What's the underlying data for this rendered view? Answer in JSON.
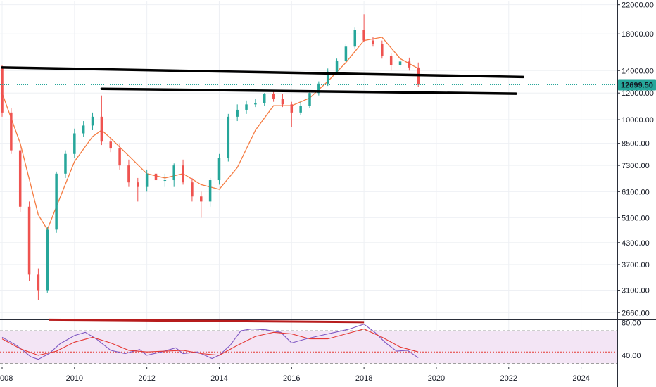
{
  "chart_data": [
    {
      "type": "candlestick",
      "title": "",
      "y_scale": "log",
      "ylim": [
        2550,
        22500
      ],
      "xlim": [
        2008.0,
        2025.0
      ],
      "grid": true,
      "x_ticks": [
        "008",
        "2010",
        "2012",
        "2014",
        "2016",
        "2018",
        "2020",
        "2022",
        "2024"
      ],
      "x_tick_values": [
        2008.0,
        2010.0,
        2012.0,
        2014.0,
        2016.0,
        2018.0,
        2020.0,
        2022.0,
        2024.0
      ],
      "y_ticks": [
        "22000.00",
        "18000.00",
        "14000.00",
        "12000.00",
        "10000.00",
        "8500.00",
        "7300.00",
        "6100.00",
        "5100.00",
        "4300.00",
        "3700.00",
        "3100.00",
        "2660.00"
      ],
      "y_tick_values": [
        22000,
        18000,
        14000,
        12000,
        10000,
        8500,
        7300,
        6100,
        5100,
        4300,
        3700,
        3100,
        2660
      ],
      "last_price": {
        "value": 12699.5,
        "label": "12699.50"
      },
      "colors": {
        "up": "#26a69a",
        "down": "#ef5350",
        "ma": "#f57c42",
        "trendline": "#000000",
        "last_price_line": "#26a69a",
        "last_price_badge": "#26a69a"
      },
      "trendlines": [
        {
          "x": [
            2008.0,
            2022.4
          ],
          "y": [
            14300,
            13400
          ]
        },
        {
          "x": [
            2010.75,
            2022.2
          ],
          "y": [
            12350,
            11950
          ]
        }
      ],
      "series": [
        {
          "type": "candlestick",
          "x": [
            2008.0,
            2008.25,
            2008.5,
            2008.75,
            2009.0,
            2009.25,
            2009.5,
            2009.75,
            2010.0,
            2010.25,
            2010.5,
            2010.75,
            2011.0,
            2011.25,
            2011.5,
            2011.75,
            2012.0,
            2012.25,
            2012.5,
            2012.75,
            2013.0,
            2013.25,
            2013.5,
            2013.75,
            2014.0,
            2014.25,
            2014.5,
            2014.75,
            2015.0,
            2015.25,
            2015.5,
            2015.75,
            2016.0,
            2016.25,
            2016.5,
            2016.75,
            2017.0,
            2017.25,
            2017.5,
            2017.75,
            2018.0,
            2018.25,
            2018.5,
            2018.75,
            2019.0,
            2019.25,
            2019.5
          ],
          "open": [
            14300,
            10500,
            8100,
            5500,
            3450,
            3100,
            4700,
            6900,
            7900,
            9100,
            9600,
            10200,
            8600,
            8200,
            7300,
            6500,
            6300,
            6900,
            6600,
            6600,
            7300,
            6500,
            5900,
            5700,
            6600,
            7700,
            10200,
            10700,
            11100,
            11200,
            11900,
            11500,
            11100,
            10500,
            11000,
            12000,
            12800,
            13900,
            15000,
            16500,
            18500,
            17200,
            16800,
            15500,
            14500,
            14900,
            14300
          ],
          "high": [
            14500,
            10800,
            8300,
            5700,
            3600,
            4800,
            7000,
            8100,
            9400,
            9900,
            10500,
            11800,
            8800,
            8500,
            7600,
            6700,
            7100,
            7100,
            6900,
            7400,
            7600,
            6700,
            6100,
            6700,
            7900,
            10400,
            11100,
            11400,
            11500,
            12000,
            12100,
            11900,
            11300,
            11300,
            12200,
            13000,
            14200,
            15200,
            16800,
            18800,
            20600,
            17600,
            17200,
            15800,
            15200,
            15300,
            14800
          ],
          "low": [
            10200,
            7900,
            5300,
            3300,
            2900,
            3050,
            4600,
            6700,
            7700,
            8900,
            9300,
            8400,
            8000,
            7100,
            6300,
            5700,
            6100,
            6300,
            6300,
            6300,
            6400,
            5700,
            5100,
            5500,
            6400,
            7500,
            9900,
            10400,
            10900,
            11000,
            11300,
            10900,
            9500,
            10300,
            10800,
            11800,
            12600,
            13700,
            14800,
            16300,
            17000,
            16500,
            15200,
            14000,
            14200,
            14000,
            12500
          ],
          "close": [
            10500,
            8100,
            5500,
            3450,
            3100,
            4700,
            6900,
            7900,
            9100,
            9600,
            10200,
            8600,
            8200,
            7300,
            6500,
            6300,
            6900,
            6600,
            6600,
            7300,
            6500,
            5900,
            5700,
            6600,
            7700,
            10200,
            10700,
            11100,
            11200,
            11900,
            11500,
            11100,
            10500,
            11000,
            12000,
            12800,
            13900,
            15000,
            16500,
            18500,
            17200,
            16800,
            15500,
            14500,
            14900,
            14300,
            12700
          ]
        },
        {
          "name": "",
          "type": "line",
          "x": [
            2008.0,
            2008.5,
            2009.0,
            2009.25,
            2009.5,
            2010.0,
            2010.5,
            2010.75,
            2011.0,
            2011.5,
            2012.0,
            2012.5,
            2013.0,
            2013.5,
            2014.0,
            2014.5,
            2015.0,
            2015.5,
            2016.0,
            2016.5,
            2017.0,
            2017.5,
            2018.0,
            2018.5,
            2019.0,
            2019.5
          ],
          "y": [
            12000,
            8500,
            5200,
            4700,
            5500,
            7500,
            8900,
            9300,
            8800,
            7800,
            6900,
            6700,
            6900,
            6400,
            6200,
            7200,
            9300,
            11000,
            11000,
            11600,
            13000,
            14800,
            17200,
            17600,
            15200,
            14200
          ]
        }
      ]
    },
    {
      "type": "line",
      "title": "",
      "xlim": [
        2008.0,
        2025.0
      ],
      "ylim": [
        27,
        82
      ],
      "y_ticks": [
        "80.00",
        "40.00"
      ],
      "y_tick_values": [
        80,
        40
      ],
      "bands": {
        "upper": 70,
        "lower": 30,
        "mid": 44
      },
      "colors": {
        "rsi": "#7e57c2",
        "rsi_ma": "#e53935",
        "band_fill": "#f3e5f5",
        "mid_line": "#e53935",
        "divergence": "#b71c1c"
      },
      "divergence_line": {
        "x": [
          2009.3,
          2018.0
        ],
        "y": [
          80,
          77
        ]
      },
      "series": [
        {
          "name": "",
          "type": "line",
          "x": [
            2008.0,
            2008.4,
            2008.8,
            2009.0,
            2009.3,
            2009.6,
            2010.0,
            2010.3,
            2010.6,
            2011.0,
            2011.4,
            2011.8,
            2012.0,
            2012.4,
            2012.8,
            2013.0,
            2013.4,
            2013.8,
            2014.0,
            2014.3,
            2014.6,
            2014.9,
            2015.3,
            2015.7,
            2016.0,
            2016.4,
            2016.8,
            2017.2,
            2017.6,
            2018.0,
            2018.3,
            2018.6,
            2018.9,
            2019.2,
            2019.5
          ],
          "y": [
            62,
            52,
            38,
            35,
            42,
            54,
            64,
            68,
            60,
            46,
            42,
            47,
            40,
            44,
            49,
            42,
            44,
            36,
            40,
            52,
            70,
            72,
            71,
            68,
            55,
            60,
            64,
            68,
            72,
            78,
            68,
            55,
            45,
            46,
            37
          ]
        },
        {
          "name": "",
          "type": "line",
          "x": [
            2008.0,
            2008.5,
            2009.0,
            2009.5,
            2010.0,
            2010.5,
            2011.0,
            2011.5,
            2012.0,
            2012.5,
            2013.0,
            2013.5,
            2014.0,
            2014.5,
            2015.0,
            2015.5,
            2016.0,
            2016.5,
            2017.0,
            2017.5,
            2018.0,
            2018.5,
            2019.0,
            2019.5
          ],
          "y": [
            60,
            48,
            40,
            45,
            56,
            62,
            55,
            46,
            44,
            45,
            46,
            42,
            40,
            52,
            63,
            68,
            66,
            60,
            60,
            66,
            72,
            62,
            50,
            44
          ]
        }
      ]
    }
  ]
}
